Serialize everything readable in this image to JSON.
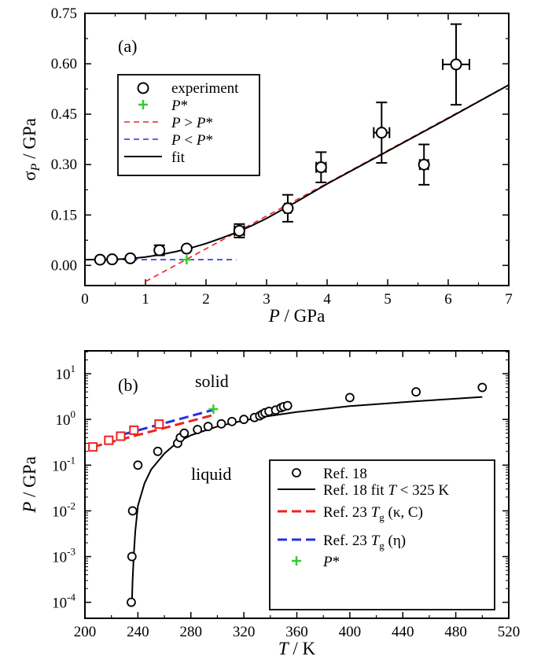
{
  "chart_data": [
    {
      "type": "scatter",
      "panel_label": "(a)",
      "xlabel": {
        "main": "P",
        "unit": " / GPa"
      },
      "ylabel": {
        "main": "σ",
        "sub": "P",
        "unit": " / GPa"
      },
      "xlim": [
        0,
        7
      ],
      "ylim": [
        -0.06,
        0.75
      ],
      "xticks": [
        0,
        1,
        2,
        3,
        4,
        5,
        6,
        7
      ],
      "yticks": [
        "0.00",
        "0.15",
        "0.30",
        "0.45",
        "0.60",
        "0.75"
      ],
      "legend": {
        "position": "left",
        "entries": [
          {
            "label": "experiment"
          },
          {
            "label": "P*"
          },
          {
            "label": "P > P*"
          },
          {
            "label": "P < P*"
          },
          {
            "label": "fit"
          }
        ]
      },
      "experiment": [
        {
          "x": 0.25,
          "y": 0.017
        },
        {
          "x": 0.45,
          "y": 0.018
        },
        {
          "x": 0.75,
          "y": 0.021
        },
        {
          "x": 1.23,
          "y": 0.045,
          "yerr": 0.015
        },
        {
          "x": 1.68,
          "y": 0.05
        },
        {
          "x": 2.55,
          "y": 0.103,
          "xerr": 0.08,
          "yerr": 0.02
        },
        {
          "x": 3.35,
          "y": 0.17,
          "xerr": 0.05,
          "yerr": 0.04
        },
        {
          "x": 3.9,
          "y": 0.292,
          "xerr": 0.08,
          "yerr": 0.045
        },
        {
          "x": 4.9,
          "y": 0.395,
          "xerr": 0.13,
          "yerr": 0.09
        },
        {
          "x": 5.6,
          "y": 0.3,
          "xerr": 0.07,
          "yerr": 0.06
        },
        {
          "x": 6.13,
          "y": 0.598,
          "xerr": 0.22,
          "yerr": 0.12
        }
      ],
      "pstar": {
        "x": 1.68,
        "y": 0.017
      },
      "line_above": {
        "x": [
          1.0,
          7.0
        ],
        "y": [
          -0.048,
          0.537
        ]
      },
      "line_below": {
        "x": [
          0.0,
          2.5
        ],
        "y": [
          0.017,
          0.017
        ]
      },
      "fit": {
        "x": [
          0.0,
          0.5,
          0.75,
          1.0,
          1.25,
          1.5,
          1.75,
          2.0,
          2.25,
          2.5,
          2.75,
          3.0,
          3.5,
          4.0,
          5.0,
          6.0,
          7.0
        ],
        "y": [
          0.017,
          0.018,
          0.02,
          0.025,
          0.032,
          0.041,
          0.052,
          0.065,
          0.081,
          0.098,
          0.118,
          0.14,
          0.19,
          0.2425,
          0.34,
          0.4375,
          0.537
        ]
      }
    },
    {
      "type": "scatter",
      "panel_label": "(b)",
      "xlabel": {
        "main": "T",
        "unit": " / K"
      },
      "ylabel": {
        "main": "P",
        "unit": " / GPa"
      },
      "xlim": [
        200,
        520
      ],
      "ylim_log10": [
        -4.35,
        1.5
      ],
      "yscale": "log",
      "xticks": [
        200,
        240,
        280,
        320,
        360,
        400,
        440,
        480,
        520
      ],
      "yticks_exp": [
        "-4",
        "-3",
        "-2",
        "-1",
        "0",
        "1"
      ],
      "region_labels": {
        "solid": "solid",
        "liquid": "liquid"
      },
      "legend": {
        "position": "bottom-right",
        "entries": [
          {
            "label": "Ref. 18"
          },
          {
            "label": "Ref. 18 fit",
            "italic": "T",
            "rest": " < 325 K"
          },
          {
            "label": "Ref. 23",
            "italic": "T",
            "sub": "g",
            "rest": " (κ, C)"
          },
          {
            "label": "Ref. 23",
            "italic": "T",
            "sub": "g",
            "rest": " (η)"
          },
          {
            "label": "P*"
          }
        ]
      },
      "ref18": [
        {
          "x": 235,
          "y": 0.0001
        },
        {
          "x": 235.5,
          "y": 0.001
        },
        {
          "x": 236,
          "y": 0.01
        },
        {
          "x": 240,
          "y": 0.1
        },
        {
          "x": 255,
          "y": 0.2
        },
        {
          "x": 270,
          "y": 0.3
        },
        {
          "x": 272,
          "y": 0.4
        },
        {
          "x": 275,
          "y": 0.5
        },
        {
          "x": 285,
          "y": 0.6
        },
        {
          "x": 293,
          "y": 0.7
        },
        {
          "x": 303,
          "y": 0.8
        },
        {
          "x": 311,
          "y": 0.9
        },
        {
          "x": 320,
          "y": 1.0
        },
        {
          "x": 328,
          "y": 1.1
        },
        {
          "x": 332,
          "y": 1.2
        },
        {
          "x": 334,
          "y": 1.3
        },
        {
          "x": 336,
          "y": 1.4
        },
        {
          "x": 339,
          "y": 1.5
        },
        {
          "x": 344,
          "y": 1.6
        },
        {
          "x": 348,
          "y": 1.8
        },
        {
          "x": 350,
          "y": 1.9
        },
        {
          "x": 353,
          "y": 2.0
        },
        {
          "x": 400,
          "y": 3.0
        },
        {
          "x": 450,
          "y": 4.0
        },
        {
          "x": 500,
          "y": 5.0
        }
      ],
      "ref18_fit": {
        "x": [
          235.5,
          236,
          237,
          238,
          240,
          245,
          250,
          260,
          270,
          280,
          300,
          320,
          340,
          360,
          400,
          450,
          500
        ],
        "y": [
          0.0001,
          0.0003,
          0.0012,
          0.0035,
          0.013,
          0.04,
          0.08,
          0.18,
          0.32,
          0.45,
          0.7,
          0.95,
          1.2,
          1.45,
          1.95,
          2.5,
          3.1
        ]
      },
      "ref23_kappa_c": [
        {
          "x": 206,
          "y": 0.25
        },
        {
          "x": 218,
          "y": 0.35
        },
        {
          "x": 227,
          "y": 0.43
        },
        {
          "x": 237,
          "y": 0.58
        },
        {
          "x": 256,
          "y": 0.79
        }
      ],
      "ref23_kappa_c_line": {
        "x": [
          206,
          297
        ],
        "y": [
          0.25,
          1.25
        ]
      },
      "ref23_eta_line": {
        "x": [
          230,
          297
        ],
        "y": [
          0.48,
          1.62
        ]
      },
      "pstar": {
        "x": 297,
        "y": 1.68
      }
    }
  ],
  "colors": {
    "pstar": "#33cc33",
    "red": "#ee2222",
    "blue": "#2233dd",
    "black": "#000000"
  }
}
